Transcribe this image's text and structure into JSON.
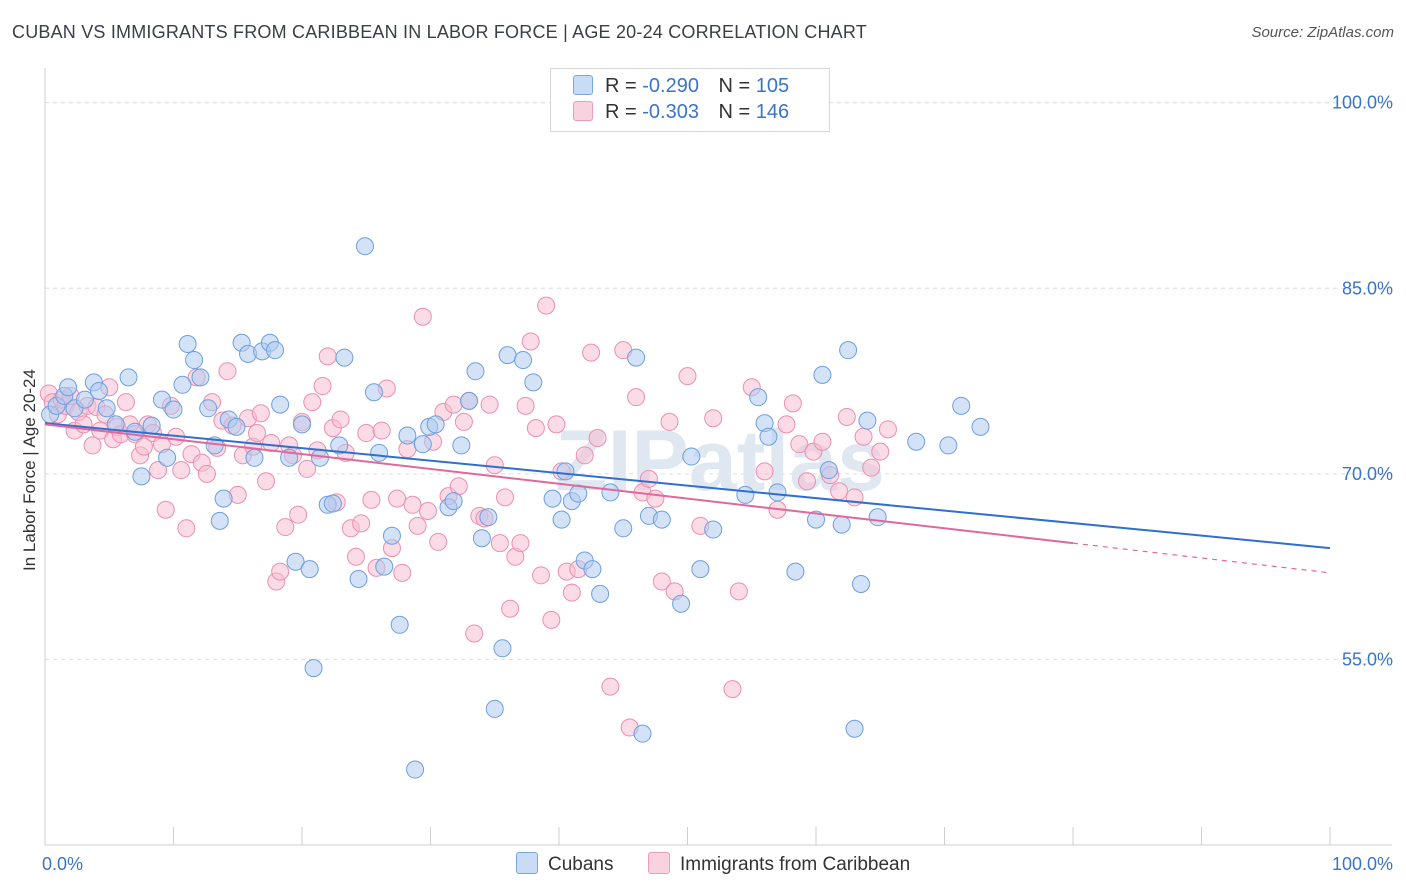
{
  "header": {
    "title": "CUBAN VS IMMIGRANTS FROM CARIBBEAN IN LABOR FORCE | AGE 20-24 CORRELATION CHART",
    "source": "Source: ZipAtlas.com"
  },
  "stats": [
    {
      "r_label": "R =",
      "r_value": "-0.290",
      "n_label": "N =",
      "n_value": "105"
    },
    {
      "r_label": "R =",
      "r_value": "-0.303",
      "n_label": "N =",
      "n_value": "146"
    }
  ],
  "legend": {
    "cubans": "Cubans",
    "caribbean": "Immigrants from Caribbean"
  },
  "colors": {
    "cubans_fill": "#aecbf0",
    "cubans_stroke": "#6d9fe0",
    "cubans_line": "#2e6fd0",
    "caribbean_fill": "#f7bed2",
    "caribbean_stroke": "#ec8fb0",
    "caribbean_line": "#e0689a",
    "grid": "#dcdcdc",
    "tick_label": "#3a74c9",
    "watermark": "#dde6f2"
  },
  "chart_data": {
    "type": "scatter",
    "title": "CUBAN VS IMMIGRANTS FROM CARIBBEAN IN LABOR FORCE | AGE 20-24 CORRELATION CHART",
    "xlabel": "",
    "ylabel": "In Labor Force | Age 20-24",
    "xlim": [
      0,
      100
    ],
    "ylim": [
      40,
      102
    ],
    "x_tick_labels": [
      {
        "value": 0,
        "label": "0.0%"
      },
      {
        "value": 100,
        "label": "100.0%"
      }
    ],
    "y_tick_labels": [
      {
        "value": 100,
        "label": "100.0%"
      },
      {
        "value": 85,
        "label": "85.0%"
      },
      {
        "value": 70,
        "label": "70.0%"
      },
      {
        "value": 55,
        "label": "55.0%"
      }
    ],
    "grid": true,
    "legend_position": "bottom",
    "watermark": "ZIPatlas",
    "series": [
      {
        "name": "Cubans",
        "r": -0.29,
        "n": 105,
        "trend": {
          "x": [
            0,
            100
          ],
          "y": [
            74.1,
            64.0
          ]
        },
        "points": [
          [
            0.4,
            74.8
          ],
          [
            0.9,
            75.5
          ],
          [
            1.5,
            76.3
          ],
          [
            1.8,
            77.0
          ],
          [
            2.3,
            75.3
          ],
          [
            3.1,
            76.0
          ],
          [
            3.8,
            77.4
          ],
          [
            4.2,
            76.7
          ],
          [
            4.8,
            75.3
          ],
          [
            5.5,
            74.0
          ],
          [
            6.5,
            77.8
          ],
          [
            7.0,
            73.4
          ],
          [
            7.5,
            69.8
          ],
          [
            8.3,
            73.9
          ],
          [
            9.1,
            76.0
          ],
          [
            9.5,
            71.3
          ],
          [
            10.0,
            75.2
          ],
          [
            10.7,
            77.2
          ],
          [
            11.1,
            80.5
          ],
          [
            11.6,
            79.2
          ],
          [
            12.1,
            77.8
          ],
          [
            12.7,
            75.3
          ],
          [
            13.2,
            72.3
          ],
          [
            13.6,
            66.2
          ],
          [
            13.9,
            68.0
          ],
          [
            14.3,
            74.4
          ],
          [
            14.9,
            73.8
          ],
          [
            15.3,
            80.6
          ],
          [
            15.8,
            79.7
          ],
          [
            16.3,
            71.3
          ],
          [
            16.9,
            79.9
          ],
          [
            17.5,
            80.6
          ],
          [
            17.9,
            80.0
          ],
          [
            18.3,
            75.6
          ],
          [
            19.0,
            71.3
          ],
          [
            19.5,
            62.9
          ],
          [
            20.0,
            74.0
          ],
          [
            20.6,
            62.3
          ],
          [
            20.9,
            54.3
          ],
          [
            21.4,
            71.3
          ],
          [
            22.0,
            67.5
          ],
          [
            22.4,
            67.6
          ],
          [
            22.9,
            72.3
          ],
          [
            23.3,
            79.4
          ],
          [
            24.4,
            61.5
          ],
          [
            24.9,
            88.4
          ],
          [
            25.6,
            76.6
          ],
          [
            26.0,
            71.7
          ],
          [
            26.4,
            62.5
          ],
          [
            27.0,
            65.0
          ],
          [
            27.6,
            57.8
          ],
          [
            28.2,
            73.1
          ],
          [
            28.8,
            46.1
          ],
          [
            29.4,
            72.4
          ],
          [
            29.9,
            73.8
          ],
          [
            30.4,
            74.0
          ],
          [
            31.4,
            67.3
          ],
          [
            31.8,
            67.8
          ],
          [
            32.4,
            72.3
          ],
          [
            33.0,
            75.9
          ],
          [
            33.5,
            78.3
          ],
          [
            34.0,
            64.8
          ],
          [
            34.5,
            66.5
          ],
          [
            35.0,
            51.0
          ],
          [
            35.6,
            55.9
          ],
          [
            36.0,
            79.6
          ],
          [
            37.2,
            79.2
          ],
          [
            38.0,
            77.4
          ],
          [
            39.5,
            68.0
          ],
          [
            40.2,
            66.3
          ],
          [
            40.5,
            70.2
          ],
          [
            41.0,
            67.8
          ],
          [
            41.5,
            68.4
          ],
          [
            42.0,
            63.0
          ],
          [
            42.6,
            62.3
          ],
          [
            43.2,
            60.3
          ],
          [
            44.0,
            68.5
          ],
          [
            45.0,
            65.6
          ],
          [
            46.0,
            79.4
          ],
          [
            46.5,
            49.0
          ],
          [
            47.0,
            66.6
          ],
          [
            48.0,
            66.3
          ],
          [
            49.5,
            59.5
          ],
          [
            50.3,
            71.4
          ],
          [
            51.0,
            62.3
          ],
          [
            52.0,
            65.5
          ],
          [
            54.5,
            68.3
          ],
          [
            55.5,
            76.2
          ],
          [
            56.0,
            74.1
          ],
          [
            56.3,
            73.0
          ],
          [
            57.0,
            68.5
          ],
          [
            58.4,
            62.1
          ],
          [
            60.5,
            78.0
          ],
          [
            61.0,
            70.3
          ],
          [
            62.0,
            65.9
          ],
          [
            62.5,
            80.0
          ],
          [
            63.5,
            61.1
          ],
          [
            64.0,
            74.3
          ],
          [
            67.8,
            72.6
          ],
          [
            70.3,
            72.3
          ],
          [
            71.3,
            75.5
          ],
          [
            72.8,
            73.8
          ],
          [
            64.8,
            66.5
          ],
          [
            63.0,
            49.4
          ],
          [
            60.0,
            66.3
          ]
        ]
      },
      {
        "name": "Immigrants from Caribbean",
        "r": -0.303,
        "n": 146,
        "trend": {
          "x": [
            0,
            100
          ],
          "y": [
            74.0,
            62.0
          ],
          "solid_until_x": 80
        },
        "points": [
          [
            0.3,
            76.5
          ],
          [
            0.6,
            75.8
          ],
          [
            1.0,
            74.8
          ],
          [
            1.3,
            76.0
          ],
          [
            1.6,
            75.5
          ],
          [
            2.0,
            76.3
          ],
          [
            2.3,
            73.5
          ],
          [
            2.6,
            75.0
          ],
          [
            3.0,
            74.0
          ],
          [
            3.3,
            75.5
          ],
          [
            3.7,
            72.3
          ],
          [
            4.0,
            75.4
          ],
          [
            4.3,
            73.5
          ],
          [
            4.7,
            74.8
          ],
          [
            5.0,
            77.0
          ],
          [
            5.3,
            72.8
          ],
          [
            5.6,
            73.8
          ],
          [
            5.9,
            73.2
          ],
          [
            6.3,
            75.8
          ],
          [
            6.6,
            74.0
          ],
          [
            7.0,
            73.2
          ],
          [
            7.4,
            71.5
          ],
          [
            7.7,
            72.2
          ],
          [
            8.0,
            74.0
          ],
          [
            8.4,
            73.3
          ],
          [
            8.8,
            70.3
          ],
          [
            9.1,
            72.4
          ],
          [
            9.4,
            67.1
          ],
          [
            9.8,
            75.5
          ],
          [
            10.2,
            73.0
          ],
          [
            10.6,
            70.3
          ],
          [
            11.0,
            65.6
          ],
          [
            11.4,
            71.6
          ],
          [
            11.8,
            77.8
          ],
          [
            12.2,
            70.9
          ],
          [
            12.6,
            70.0
          ],
          [
            13.0,
            75.8
          ],
          [
            13.4,
            72.1
          ],
          [
            13.8,
            74.3
          ],
          [
            14.2,
            78.3
          ],
          [
            14.6,
            73.9
          ],
          [
            15.0,
            68.3
          ],
          [
            15.4,
            71.5
          ],
          [
            15.8,
            74.5
          ],
          [
            16.2,
            72.2
          ],
          [
            16.5,
            73.3
          ],
          [
            16.8,
            74.9
          ],
          [
            17.2,
            69.4
          ],
          [
            17.6,
            72.5
          ],
          [
            18.0,
            61.3
          ],
          [
            18.3,
            62.1
          ],
          [
            18.7,
            65.7
          ],
          [
            19.0,
            72.3
          ],
          [
            19.3,
            71.5
          ],
          [
            19.7,
            66.7
          ],
          [
            20.0,
            74.2
          ],
          [
            20.4,
            70.4
          ],
          [
            20.8,
            75.8
          ],
          [
            21.2,
            71.9
          ],
          [
            21.6,
            77.1
          ],
          [
            22.0,
            79.5
          ],
          [
            22.4,
            73.7
          ],
          [
            22.7,
            67.7
          ],
          [
            23.0,
            74.4
          ],
          [
            23.4,
            71.7
          ],
          [
            23.8,
            65.6
          ],
          [
            24.2,
            63.3
          ],
          [
            24.6,
            66.0
          ],
          [
            25.0,
            73.3
          ],
          [
            25.4,
            67.9
          ],
          [
            25.8,
            62.4
          ],
          [
            26.2,
            73.5
          ],
          [
            26.6,
            76.9
          ],
          [
            27.0,
            64.0
          ],
          [
            27.4,
            68.0
          ],
          [
            27.8,
            62.0
          ],
          [
            28.2,
            72.0
          ],
          [
            28.6,
            67.5
          ],
          [
            29.0,
            65.8
          ],
          [
            29.4,
            82.7
          ],
          [
            29.8,
            67.0
          ],
          [
            30.2,
            72.6
          ],
          [
            30.6,
            64.5
          ],
          [
            31.0,
            75.0
          ],
          [
            31.4,
            68.2
          ],
          [
            31.8,
            75.6
          ],
          [
            32.2,
            69.0
          ],
          [
            32.6,
            74.2
          ],
          [
            33.0,
            75.9
          ],
          [
            33.4,
            57.1
          ],
          [
            33.8,
            66.6
          ],
          [
            34.2,
            66.4
          ],
          [
            34.6,
            75.6
          ],
          [
            35.0,
            70.7
          ],
          [
            35.4,
            64.4
          ],
          [
            35.8,
            68.1
          ],
          [
            36.2,
            59.1
          ],
          [
            36.6,
            63.3
          ],
          [
            37.0,
            64.4
          ],
          [
            37.4,
            75.5
          ],
          [
            37.8,
            80.7
          ],
          [
            38.2,
            73.7
          ],
          [
            38.6,
            61.8
          ],
          [
            39.0,
            83.6
          ],
          [
            39.4,
            58.2
          ],
          [
            39.8,
            74.0
          ],
          [
            40.2,
            70.2
          ],
          [
            40.6,
            62.1
          ],
          [
            41.0,
            60.4
          ],
          [
            41.5,
            62.3
          ],
          [
            42.0,
            71.5
          ],
          [
            42.5,
            79.8
          ],
          [
            43.0,
            72.9
          ],
          [
            44.0,
            52.8
          ],
          [
            45.0,
            80.0
          ],
          [
            45.5,
            49.5
          ],
          [
            46.0,
            76.2
          ],
          [
            46.5,
            68.5
          ],
          [
            47.0,
            69.6
          ],
          [
            47.5,
            68.0
          ],
          [
            48.0,
            61.3
          ],
          [
            48.6,
            74.2
          ],
          [
            49.0,
            60.5
          ],
          [
            50.0,
            77.9
          ],
          [
            51.0,
            65.8
          ],
          [
            52.0,
            74.5
          ],
          [
            53.5,
            52.6
          ],
          [
            54.0,
            60.5
          ],
          [
            55.0,
            77.0
          ],
          [
            56.0,
            70.2
          ],
          [
            57.0,
            67.1
          ],
          [
            57.7,
            74.0
          ],
          [
            58.2,
            75.7
          ],
          [
            58.7,
            72.4
          ],
          [
            59.3,
            69.4
          ],
          [
            59.8,
            71.8
          ],
          [
            60.5,
            72.6
          ],
          [
            61.1,
            69.9
          ],
          [
            61.8,
            68.6
          ],
          [
            62.4,
            74.6
          ],
          [
            63.0,
            68.1
          ],
          [
            63.7,
            73.0
          ],
          [
            64.3,
            70.5
          ],
          [
            65.0,
            71.8
          ],
          [
            65.6,
            73.6
          ]
        ]
      }
    ]
  }
}
